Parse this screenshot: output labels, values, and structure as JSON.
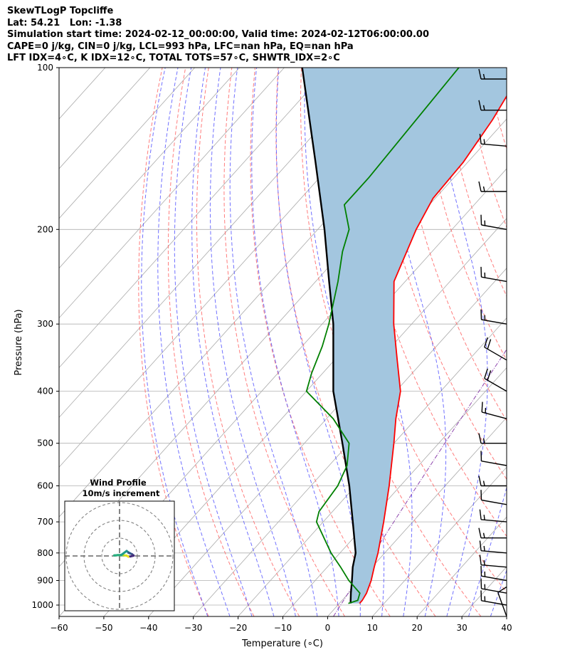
{
  "header": {
    "line1": "SkewTLogP Topcliffe",
    "line2": "Lat: 54.21   Lon: -1.38",
    "line3": "Simulation start time: 2024-02-12_00:00:00, Valid time: 2024-02-12T06:00:00.00",
    "line4": "CAPE=0 j/kg, CIN=0 j/kg, LCL=993 hPa, LFC=nan hPa, EQ=nan hPa",
    "line5": "LFT IDX=4∘C, K IDX=12∘C, TOTAL TOTS=57∘C, SHWTR_IDX=2∘C"
  },
  "hodograph": {
    "title": "Wind Profile",
    "subtitle": "10m/s increment"
  },
  "chart_data": {
    "type": "skew-t log-p",
    "xlabel": "Temperature (∘C)",
    "ylabel": "Pressure (hPa)",
    "xlim": [
      -60,
      40
    ],
    "ylim": [
      1050,
      100
    ],
    "y_scale": "log",
    "x_ticks": [
      "−60",
      "−50",
      "−40",
      "−30",
      "−20",
      "−10",
      "0",
      "10",
      "20",
      "30",
      "40"
    ],
    "y_ticks": [
      "100",
      "200",
      "300",
      "400",
      "500",
      "600",
      "700",
      "800",
      "900",
      "1000"
    ],
    "x_tick_values": [
      -60,
      -50,
      -40,
      -30,
      -20,
      -10,
      0,
      10,
      20,
      30,
      40
    ],
    "y_tick_values": [
      100,
      200,
      300,
      400,
      500,
      600,
      700,
      800,
      900,
      1000
    ],
    "grid": true,
    "colors": {
      "temperature": "#ff0000",
      "dewpoint": "#008000",
      "parcel": "#000000",
      "shade": "#a3c6df",
      "dry_adiabats": "#ff6666",
      "moist_adiabats": "#4d4dff",
      "isotherms": "#aaaaaa",
      "mixing_ratio": "#8e44ad"
    },
    "temperature": {
      "p": [
        993,
        980,
        950,
        900,
        850,
        800,
        700,
        600,
        500,
        450,
        400,
        350,
        300,
        250,
        200,
        175,
        150,
        125,
        110,
        100
      ],
      "t": [
        4.5,
        4.5,
        4.0,
        2.5,
        0.5,
        -1.5,
        -6.5,
        -12.5,
        -20.0,
        -24.5,
        -29.0,
        -36.0,
        -44.0,
        -52.5,
        -58.0,
        -60.5,
        -61.0,
        -63.0,
        -65.0,
        -66.5
      ]
    },
    "dewpoint": {
      "p": [
        993,
        980,
        950,
        900,
        850,
        800,
        700,
        670,
        600,
        550,
        500,
        450,
        400,
        370,
        330,
        300,
        250,
        220,
        200,
        180,
        160,
        100
      ],
      "td": [
        2.0,
        3.5,
        2.5,
        -2.5,
        -7.0,
        -12.0,
        -21.5,
        -23.0,
        -24.0,
        -26.0,
        -30.0,
        -38.5,
        -50.0,
        -52.5,
        -55.5,
        -58.5,
        -65.0,
        -70.0,
        -73.0,
        -79.0,
        -79.0,
        -81.0
      ]
    },
    "parcel": {
      "p": [
        993,
        950,
        900,
        850,
        800,
        700,
        600,
        500,
        400,
        300,
        250,
        200,
        150,
        100
      ],
      "t": [
        2.5,
        0.5,
        -1.8,
        -4.3,
        -6.5,
        -13.4,
        -21.4,
        -31.5,
        -44.0,
        -57.5,
        -67.0,
        -78.5,
        -94.0,
        -116.0
      ]
    },
    "wind_barbs": {
      "p": [
        1050,
        1000,
        950,
        900,
        850,
        800,
        750,
        700,
        650,
        600,
        550,
        500,
        450,
        400,
        350,
        300,
        250,
        200,
        170,
        140,
        120,
        105
      ],
      "speed_kt": [
        10,
        15,
        15,
        15,
        15,
        15,
        15,
        15,
        10,
        15,
        10,
        15,
        15,
        20,
        20,
        15,
        15,
        15,
        15,
        15,
        15,
        15
      ],
      "direction_deg": [
        340,
        280,
        280,
        280,
        275,
        275,
        270,
        275,
        280,
        270,
        280,
        270,
        285,
        300,
        300,
        280,
        280,
        280,
        270,
        275,
        270,
        270
      ]
    },
    "hodograph_data": {
      "rings": [
        10,
        20,
        30
      ],
      "u": [
        5,
        4,
        2,
        1,
        -1,
        -3,
        1,
        4,
        5,
        6,
        5,
        7,
        8,
        6
      ],
      "v": [
        -0.5,
        0.2,
        0.4,
        0.4,
        0.5,
        0.3,
        0.6,
        2.8,
        2.0,
        1.5,
        1.8,
        1.0,
        0.2,
        -0.3
      ]
    }
  }
}
